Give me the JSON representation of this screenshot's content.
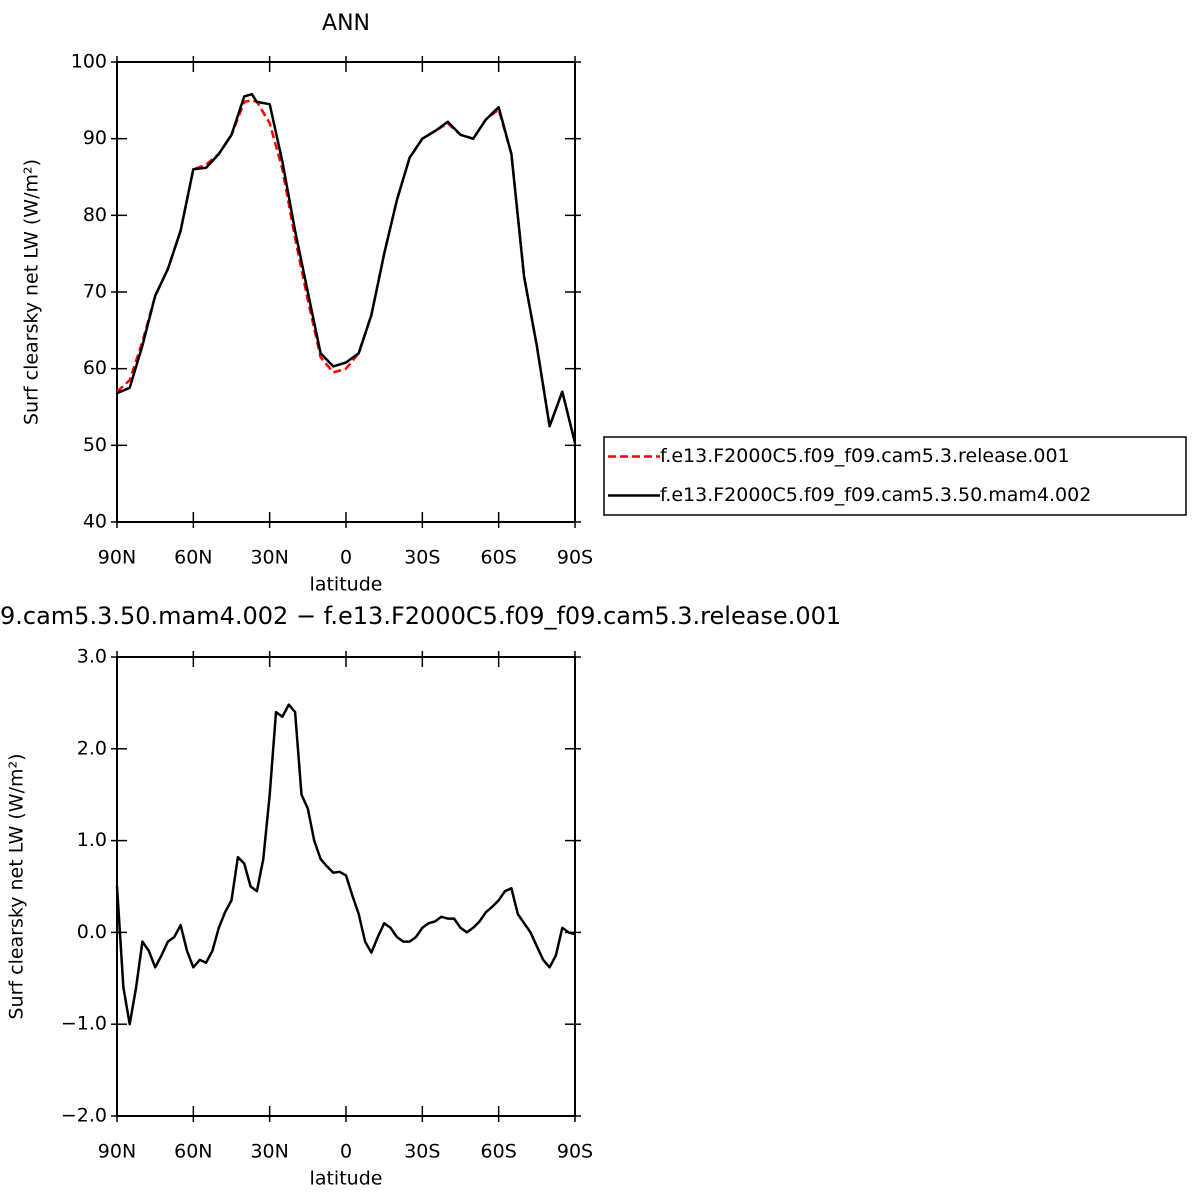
{
  "chart_data": [
    {
      "type": "line",
      "title": "ANN",
      "xlabel": "latitude",
      "ylabel": "Surf clearsky net LW (W/m²)",
      "x": [
        90,
        85,
        80,
        75,
        70,
        65,
        60,
        55,
        50,
        45,
        40,
        37,
        35,
        30,
        25,
        20,
        15,
        10,
        5,
        0,
        -5,
        -10,
        -15,
        -20,
        -25,
        -30,
        -35,
        -40,
        -45,
        -50,
        -55,
        -60,
        -65,
        -70,
        -75,
        -80,
        -85,
        -90
      ],
      "xlim": [
        90,
        -90
      ],
      "xticks": [
        {
          "value": 90,
          "label": "90N"
        },
        {
          "value": 60,
          "label": "60N"
        },
        {
          "value": 30,
          "label": "30N"
        },
        0,
        {
          "value": -30,
          "label": "30S"
        },
        {
          "value": -60,
          "label": "60S"
        },
        {
          "value": -90,
          "label": "90S"
        }
      ],
      "ylim": [
        40,
        100
      ],
      "yticks": [
        40,
        50,
        60,
        70,
        80,
        90,
        100
      ],
      "legend": "outside-right",
      "series": [
        {
          "name": "f.e13.F2000C5.f09_f09.cam5.3.release.001",
          "color": "#ff0000",
          "linestyle": "dashed",
          "values": [
            57,
            58.5,
            63.5,
            69.5,
            73,
            78,
            86,
            86.6,
            88,
            90.5,
            94.8,
            95,
            94.8,
            92,
            86,
            77,
            69,
            61.5,
            59.5,
            60,
            62,
            67,
            75,
            82,
            87.5,
            90,
            91,
            92,
            90.5,
            90,
            92.5,
            93.8,
            88,
            72,
            63,
            52.5,
            57,
            50.3
          ]
        },
        {
          "name": "f.e13.F2000C5.f09_f09.cam5.3.50.mam4.002",
          "color": "#000000",
          "linestyle": "solid",
          "values": [
            56.8,
            57.5,
            63,
            69.5,
            73,
            78,
            86,
            86.2,
            88,
            90.5,
            95.5,
            95.8,
            94.8,
            94.5,
            87,
            78,
            70,
            62,
            60.3,
            60.8,
            62,
            67,
            75,
            82,
            87.5,
            90,
            91,
            92.2,
            90.5,
            90,
            92.5,
            94.1,
            88,
            72,
            63,
            52.5,
            57,
            50.3
          ]
        }
      ]
    },
    {
      "type": "line",
      "title": "9.cam5.3.50.mam4.002 − f.e13.F2000C5.f09_f09.cam5.3.release.001",
      "xlabel": "latitude",
      "ylabel": "Surf clearsky net LW (W/m²)",
      "x": [
        90,
        87.5,
        85,
        82.5,
        80,
        77.5,
        75,
        72.5,
        70,
        67.5,
        65,
        62.5,
        60,
        57.5,
        55,
        52.5,
        50,
        47.5,
        45,
        42.5,
        40,
        37.5,
        35,
        32.5,
        30,
        27.5,
        25,
        22.5,
        20,
        17.5,
        15,
        12.5,
        10,
        7.5,
        5,
        2.5,
        0,
        -2.5,
        -5,
        -7.5,
        -10,
        -12.5,
        -15,
        -17.5,
        -20,
        -22.5,
        -25,
        -27.5,
        -30,
        -32.5,
        -35,
        -37.5,
        -40,
        -42.5,
        -45,
        -47.5,
        -50,
        -52.5,
        -55,
        -57.5,
        -60,
        -62.5,
        -65,
        -67.5,
        -70,
        -72.5,
        -75,
        -77.5,
        -80,
        -82.5,
        -85,
        -87.5,
        -90
      ],
      "xlim": [
        90,
        -90
      ],
      "xticks": [
        {
          "value": 90,
          "label": "90N"
        },
        {
          "value": 60,
          "label": "60N"
        },
        {
          "value": 30,
          "label": "30N"
        },
        0,
        {
          "value": -30,
          "label": "30S"
        },
        {
          "value": -60,
          "label": "60S"
        },
        {
          "value": -90,
          "label": "90S"
        }
      ],
      "ylim": [
        -2,
        3
      ],
      "yticks": [
        {
          "value": -2,
          "label": "−2.0"
        },
        {
          "value": -1,
          "label": "−1.0"
        },
        {
          "value": 0,
          "label": "0.0"
        },
        {
          "value": 1,
          "label": "1.0"
        },
        {
          "value": 2,
          "label": "2.0"
        },
        {
          "value": 3,
          "label": "3.0"
        }
      ],
      "series": [
        {
          "color": "#000000",
          "linestyle": "solid",
          "values": [
            0.5,
            -0.6,
            -1.0,
            -0.6,
            -0.1,
            -0.2,
            -0.38,
            -0.25,
            -0.1,
            -0.05,
            0.08,
            -0.2,
            -0.38,
            -0.3,
            -0.33,
            -0.2,
            0.05,
            0.22,
            0.35,
            0.82,
            0.75,
            0.5,
            0.45,
            0.8,
            1.5,
            2.4,
            2.35,
            2.48,
            2.4,
            1.5,
            1.35,
            1.0,
            0.8,
            0.72,
            0.65,
            0.66,
            0.62,
            0.4,
            0.2,
            -0.1,
            -0.22,
            -0.05,
            0.1,
            0.05,
            -0.05,
            -0.1,
            -0.1,
            -0.05,
            0.05,
            0.1,
            0.12,
            0.17,
            0.15,
            0.15,
            0.05,
            0,
            0.05,
            0.12,
            0.22,
            0.28,
            0.35,
            0.45,
            0.48,
            0.2,
            0.1,
            0,
            -0.15,
            -0.3,
            -0.38,
            -0.25,
            0.05,
            0,
            -0.02
          ]
        }
      ]
    }
  ]
}
